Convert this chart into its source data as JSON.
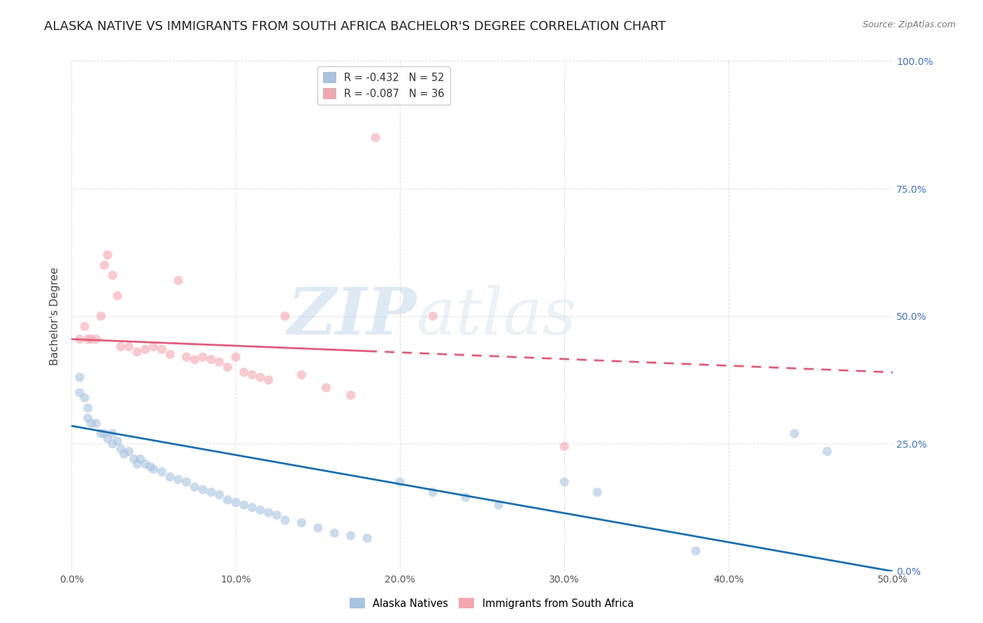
{
  "title": "ALASKA NATIVE VS IMMIGRANTS FROM SOUTH AFRICA BACHELOR'S DEGREE CORRELATION CHART",
  "source": "Source: ZipAtlas.com",
  "ylabel": "Bachelor's Degree",
  "xlim": [
    0.0,
    0.5
  ],
  "ylim": [
    0.0,
    1.0
  ],
  "xticks": [
    0.0,
    0.1,
    0.2,
    0.3,
    0.4,
    0.5
  ],
  "yticks": [
    0.0,
    0.25,
    0.5,
    0.75,
    1.0
  ],
  "xticklabels": [
    "0.0%",
    "10.0%",
    "20.0%",
    "30.0%",
    "40.0%",
    "50.0%"
  ],
  "yticklabels_right": [
    "0.0%",
    "25.0%",
    "50.0%",
    "75.0%",
    "100.0%"
  ],
  "legend_r_alaska": "-0.432",
  "legend_n_alaska": "52",
  "legend_r_immigrants": "-0.087",
  "legend_n_immigrants": "36",
  "alaska_color": "#a8c4e0",
  "immigrants_color": "#f4a7b0",
  "alaska_line_color": "#1a6faf",
  "immigrants_line_color": "#e05c7a",
  "watermark_zip": "ZIP",
  "watermark_atlas": "atlas",
  "alaska_x": [
    0.005,
    0.005,
    0.008,
    0.01,
    0.01,
    0.012,
    0.015,
    0.018,
    0.02,
    0.022,
    0.025,
    0.025,
    0.028,
    0.03,
    0.032,
    0.035,
    0.038,
    0.04,
    0.042,
    0.045,
    0.048,
    0.05,
    0.055,
    0.06,
    0.065,
    0.07,
    0.075,
    0.08,
    0.085,
    0.09,
    0.095,
    0.1,
    0.105,
    0.11,
    0.115,
    0.12,
    0.125,
    0.13,
    0.14,
    0.15,
    0.16,
    0.17,
    0.18,
    0.2,
    0.22,
    0.24,
    0.26,
    0.3,
    0.32,
    0.38,
    0.44,
    0.46
  ],
  "alaska_y": [
    0.38,
    0.35,
    0.34,
    0.32,
    0.3,
    0.29,
    0.29,
    0.27,
    0.27,
    0.26,
    0.27,
    0.25,
    0.255,
    0.24,
    0.23,
    0.235,
    0.22,
    0.21,
    0.22,
    0.21,
    0.205,
    0.2,
    0.195,
    0.185,
    0.18,
    0.175,
    0.165,
    0.16,
    0.155,
    0.15,
    0.14,
    0.135,
    0.13,
    0.125,
    0.12,
    0.115,
    0.11,
    0.1,
    0.095,
    0.085,
    0.075,
    0.07,
    0.065,
    0.175,
    0.155,
    0.145,
    0.13,
    0.175,
    0.155,
    0.04,
    0.27,
    0.235
  ],
  "immigrants_x": [
    0.005,
    0.008,
    0.01,
    0.012,
    0.015,
    0.018,
    0.02,
    0.022,
    0.025,
    0.028,
    0.03,
    0.035,
    0.04,
    0.045,
    0.05,
    0.055,
    0.06,
    0.065,
    0.07,
    0.075,
    0.08,
    0.085,
    0.09,
    0.095,
    0.1,
    0.105,
    0.11,
    0.115,
    0.12,
    0.13,
    0.14,
    0.155,
    0.17,
    0.185,
    0.22,
    0.3
  ],
  "immigrants_y": [
    0.455,
    0.48,
    0.455,
    0.455,
    0.455,
    0.5,
    0.6,
    0.62,
    0.58,
    0.54,
    0.44,
    0.44,
    0.43,
    0.435,
    0.44,
    0.435,
    0.425,
    0.57,
    0.42,
    0.415,
    0.42,
    0.415,
    0.41,
    0.4,
    0.42,
    0.39,
    0.385,
    0.38,
    0.375,
    0.5,
    0.385,
    0.36,
    0.345,
    0.85,
    0.5,
    0.245
  ],
  "alaska_line_x": [
    0.0,
    0.5
  ],
  "alaska_line_y": [
    0.285,
    0.0
  ],
  "immigrants_line_x": [
    0.0,
    0.5
  ],
  "immigrants_line_y": [
    0.455,
    0.39
  ],
  "immigrants_line_dashed_start": 0.18,
  "background_color": "#ffffff",
  "grid_color": "#e0e0e0",
  "title_fontsize": 13,
  "axis_fontsize": 11,
  "tick_fontsize": 10,
  "source_fontsize": 9,
  "marker_size": 90,
  "marker_alpha": 0.6,
  "right_tick_color": "#4472c4"
}
